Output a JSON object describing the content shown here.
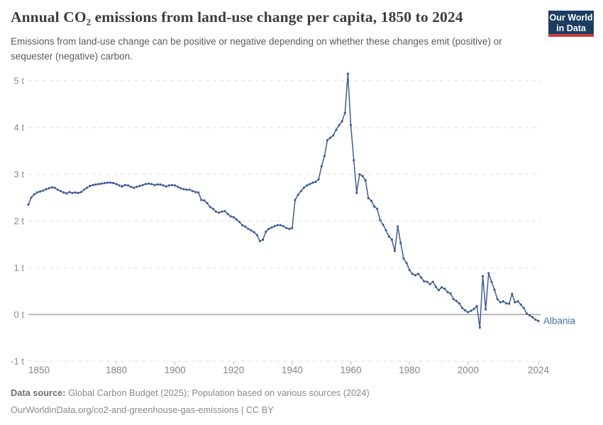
{
  "header": {
    "title": "Annual CO₂ emissions from land-use change per capita, 1850 to 2024",
    "subtitle": "Emissions from land-use change can be positive or negative depending on whether these changes emit (positive) or sequester (negative) carbon."
  },
  "logo": {
    "line1": "Our World",
    "line2": "in Data",
    "bg_color": "#1d3d63",
    "accent_color": "#cc3e3e"
  },
  "chart_data": {
    "type": "line",
    "title": "Annual CO₂ emissions from land-use change per capita, 1850 to 2024",
    "xlabel": "",
    "ylabel": "",
    "unit": "t",
    "x_start": 1850,
    "x_step": 1,
    "x_range": [
      1850,
      2024
    ],
    "ylim": [
      -1,
      5
    ],
    "grid": true,
    "y_ticks": [
      5,
      4,
      3,
      2,
      1,
      0,
      -1
    ],
    "y_tick_labels": [
      "5 t",
      "4 t",
      "3 t",
      "2 t",
      "1 t",
      "0 t",
      "-1 t"
    ],
    "x_ticks": [
      1850,
      1880,
      1900,
      1920,
      1940,
      1960,
      1980,
      2000,
      2024
    ],
    "colors": {
      "line": "#3d5c94",
      "entity_label": "#4a6fae",
      "gridline": "#dcdcdc",
      "zero_line": "#a3a3a3",
      "y_tick_text": "#8c8c8c",
      "x_tick_text": "#858585",
      "tick_mark": "#bbbbbb"
    },
    "series": [
      {
        "name": "Albania",
        "values": [
          2.35,
          2.5,
          2.57,
          2.61,
          2.63,
          2.65,
          2.68,
          2.7,
          2.72,
          2.71,
          2.67,
          2.64,
          2.61,
          2.59,
          2.62,
          2.6,
          2.61,
          2.6,
          2.62,
          2.67,
          2.71,
          2.75,
          2.77,
          2.78,
          2.79,
          2.8,
          2.81,
          2.82,
          2.82,
          2.81,
          2.79,
          2.76,
          2.74,
          2.77,
          2.76,
          2.73,
          2.71,
          2.73,
          2.75,
          2.77,
          2.79,
          2.8,
          2.79,
          2.77,
          2.78,
          2.78,
          2.76,
          2.74,
          2.76,
          2.77,
          2.76,
          2.73,
          2.7,
          2.68,
          2.67,
          2.67,
          2.64,
          2.62,
          2.61,
          2.45,
          2.44,
          2.38,
          2.3,
          2.26,
          2.2,
          2.18,
          2.2,
          2.21,
          2.15,
          2.1,
          2.08,
          2.03,
          1.98,
          1.91,
          1.88,
          1.83,
          1.8,
          1.76,
          1.7,
          1.57,
          1.6,
          1.77,
          1.83,
          1.86,
          1.89,
          1.91,
          1.91,
          1.89,
          1.85,
          1.83,
          1.85,
          2.45,
          2.56,
          2.64,
          2.71,
          2.76,
          2.79,
          2.82,
          2.84,
          2.89,
          3.17,
          3.39,
          3.73,
          3.78,
          3.83,
          3.95,
          4.05,
          4.13,
          4.31,
          5.15,
          4.05,
          3.3,
          2.6,
          3.0,
          2.96,
          2.87,
          2.49,
          2.43,
          2.31,
          2.26,
          2.02,
          1.92,
          1.8,
          1.67,
          1.6,
          1.36,
          1.88,
          1.53,
          1.2,
          1.1,
          0.95,
          0.87,
          0.84,
          0.87,
          0.79,
          0.71,
          0.7,
          0.65,
          0.7,
          0.59,
          0.52,
          0.58,
          0.55,
          0.48,
          0.45,
          0.33,
          0.29,
          0.24,
          0.14,
          0.09,
          0.05,
          0.08,
          0.12,
          0.18,
          -0.28,
          0.82,
          0.11,
          0.88,
          0.7,
          0.53,
          0.33,
          0.26,
          0.28,
          0.24,
          0.23,
          0.44,
          0.26,
          0.28,
          0.21,
          0.14,
          0.02,
          -0.02,
          -0.06,
          -0.11,
          -0.14
        ]
      }
    ]
  },
  "footer": {
    "source_label": "Data source:",
    "source_text": " Global Carbon Budget (2025); Population based on various sources (2024)",
    "note": "OurWorldinData.org/co2-and-greenhouse-gas-emissions | CC BY"
  }
}
